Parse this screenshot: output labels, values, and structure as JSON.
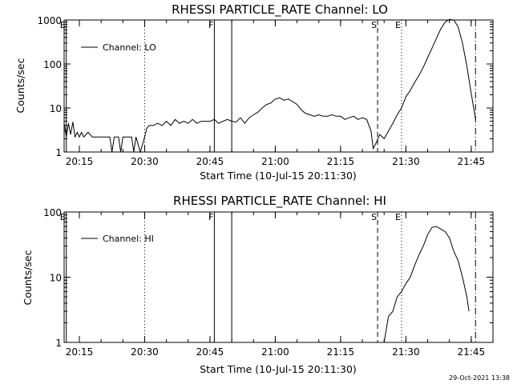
{
  "footer_date": "29-Oct-2021 13:38",
  "chart_data": [
    {
      "type": "line",
      "title": "RHESSI PARTICLE_RATE Channel: LO",
      "xlabel": "Start Time (10-Jul-15 20:11:30)",
      "ylabel": "Counts/sec",
      "y_scale": "log",
      "ylim": [
        1,
        1000
      ],
      "xlim": [
        "20:11:30",
        "21:50:00"
      ],
      "x_ticks": [
        "20:15",
        "20:30",
        "20:45",
        "21:00",
        "21:15",
        "21:30",
        "21:45"
      ],
      "y_ticks": [
        "1",
        "10",
        "100",
        "1000"
      ],
      "legend": "Channel: LO",
      "legend_position": "top-left",
      "markers": [
        {
          "label": "E",
          "time": "20:12:00",
          "style": "solid"
        },
        {
          "label": "",
          "time": "20:30:00",
          "style": "dotted"
        },
        {
          "label": "F",
          "time": "20:46:00",
          "style": "solid"
        },
        {
          "label": "",
          "time": "20:50:00",
          "style": "solid"
        },
        {
          "label": "S",
          "time": "21:23:30",
          "style": "dashed"
        },
        {
          "label": "E",
          "time": "21:29:00",
          "style": "dotted"
        },
        {
          "label": "",
          "time": "21:46:00",
          "style": "dashdot"
        }
      ],
      "series": [
        {
          "name": "Channel: LO",
          "points": [
            [
              "20:11:30",
              4.5
            ],
            [
              "20:12:00",
              2.2
            ],
            [
              "20:12:30",
              4.5
            ],
            [
              "20:13:00",
              2.5
            ],
            [
              "20:13:30",
              4.8
            ],
            [
              "20:14:00",
              2.2
            ],
            [
              "20:14:30",
              2.8
            ],
            [
              "20:15:00",
              2.2
            ],
            [
              "20:15:30",
              2.8
            ],
            [
              "20:16:00",
              2.2
            ],
            [
              "20:17:00",
              2.8
            ],
            [
              "20:18:00",
              2.2
            ],
            [
              "20:19:00",
              2.2
            ],
            [
              "20:20:00",
              2.2
            ],
            [
              "20:21:00",
              2.2
            ],
            [
              "20:22:00",
              2.2
            ],
            [
              "20:22:30",
              1
            ],
            [
              "20:23:00",
              2.2
            ],
            [
              "20:24:00",
              2.2
            ],
            [
              "20:24:30",
              1
            ],
            [
              "20:25:00",
              2.2
            ],
            [
              "20:26:00",
              2.2
            ],
            [
              "20:27:00",
              2.2
            ],
            [
              "20:27:30",
              1
            ],
            [
              "20:28:00",
              2.2
            ],
            [
              "20:29:00",
              1
            ],
            [
              "20:30:00",
              2.2
            ],
            [
              "20:30:30",
              3.5
            ],
            [
              "20:31:00",
              4
            ],
            [
              "20:32:00",
              4
            ],
            [
              "20:33:00",
              4.5
            ],
            [
              "20:34:00",
              4
            ],
            [
              "20:35:00",
              5
            ],
            [
              "20:36:00",
              4
            ],
            [
              "20:37:00",
              5.5
            ],
            [
              "20:38:00",
              4.5
            ],
            [
              "20:39:00",
              5
            ],
            [
              "20:40:00",
              4.5
            ],
            [
              "20:41:00",
              5.5
            ],
            [
              "20:42:00",
              4.5
            ],
            [
              "20:43:00",
              5
            ],
            [
              "20:44:00",
              5
            ],
            [
              "20:45:00",
              5
            ],
            [
              "20:46:00",
              5.5
            ],
            [
              "20:47:00",
              4.5
            ],
            [
              "20:48:00",
              5
            ],
            [
              "20:49:00",
              5.5
            ],
            [
              "20:50:00",
              5
            ],
            [
              "20:51:00",
              4.8
            ],
            [
              "20:52:00",
              6
            ],
            [
              "20:53:00",
              4.5
            ],
            [
              "20:54:00",
              6
            ],
            [
              "20:55:00",
              7
            ],
            [
              "20:56:00",
              8
            ],
            [
              "20:57:00",
              10
            ],
            [
              "20:58:00",
              12
            ],
            [
              "20:59:00",
              13
            ],
            [
              "21:00:00",
              16
            ],
            [
              "21:01:00",
              17
            ],
            [
              "21:02:00",
              15
            ],
            [
              "21:03:00",
              16
            ],
            [
              "21:04:00",
              14
            ],
            [
              "21:05:00",
              12
            ],
            [
              "21:06:00",
              9
            ],
            [
              "21:07:00",
              7.5
            ],
            [
              "21:08:00",
              7
            ],
            [
              "21:09:00",
              6.5
            ],
            [
              "21:10:00",
              7
            ],
            [
              "21:11:00",
              6.5
            ],
            [
              "21:12:00",
              6.5
            ],
            [
              "21:13:00",
              7
            ],
            [
              "21:14:00",
              6.5
            ],
            [
              "21:15:00",
              6.5
            ],
            [
              "21:16:00",
              5.5
            ],
            [
              "21:17:00",
              6
            ],
            [
              "21:18:00",
              6.5
            ],
            [
              "21:19:00",
              5.5
            ],
            [
              "21:20:00",
              6
            ],
            [
              "21:21:00",
              5.5
            ],
            [
              "21:22:00",
              3
            ],
            [
              "21:22:30",
              1.2
            ],
            [
              "21:23:00",
              1.5
            ],
            [
              "21:24:00",
              2.5
            ],
            [
              "21:25:00",
              2
            ],
            [
              "21:26:00",
              3
            ],
            [
              "21:27:00",
              4.5
            ],
            [
              "21:28:00",
              7
            ],
            [
              "21:29:00",
              10
            ],
            [
              "21:30:00",
              18
            ],
            [
              "21:31:00",
              25
            ],
            [
              "21:32:00",
              38
            ],
            [
              "21:33:00",
              55
            ],
            [
              "21:34:00",
              85
            ],
            [
              "21:35:00",
              140
            ],
            [
              "21:36:00",
              230
            ],
            [
              "21:37:00",
              380
            ],
            [
              "21:38:00",
              620
            ],
            [
              "21:39:00",
              900
            ],
            [
              "21:40:00",
              1030
            ],
            [
              "21:41:00",
              1000
            ],
            [
              "21:42:00",
              700
            ],
            [
              "21:43:00",
              300
            ],
            [
              "21:44:00",
              90
            ],
            [
              "21:45:00",
              22
            ],
            [
              "21:46:00",
              5.5
            ]
          ]
        }
      ]
    },
    {
      "type": "line",
      "title": "RHESSI PARTICLE_RATE Channel: HI",
      "xlabel": "Start Time (10-Jul-15 20:11:30)",
      "ylabel": "Counts/sec",
      "y_scale": "log",
      "ylim": [
        1,
        100
      ],
      "xlim": [
        "20:11:30",
        "21:50:00"
      ],
      "x_ticks": [
        "20:15",
        "20:30",
        "20:45",
        "21:00",
        "21:15",
        "21:30",
        "21:45"
      ],
      "y_ticks": [
        "1",
        "10",
        "100"
      ],
      "legend": "Channel: HI",
      "legend_position": "top-left",
      "markers": [
        {
          "label": "E",
          "time": "20:12:00",
          "style": "solid"
        },
        {
          "label": "",
          "time": "20:30:00",
          "style": "dotted"
        },
        {
          "label": "F",
          "time": "20:46:00",
          "style": "solid"
        },
        {
          "label": "",
          "time": "20:50:00",
          "style": "solid"
        },
        {
          "label": "S",
          "time": "21:23:30",
          "style": "dashed"
        },
        {
          "label": "E",
          "time": "21:29:00",
          "style": "dotted"
        },
        {
          "label": "",
          "time": "21:46:00",
          "style": "dashdot"
        }
      ],
      "series": [
        {
          "name": "Channel: HI",
          "points": [
            [
              "21:25:00",
              1
            ],
            [
              "21:26:00",
              2.5
            ],
            [
              "21:27:00",
              3
            ],
            [
              "21:28:00",
              5
            ],
            [
              "21:29:00",
              6
            ],
            [
              "21:30:00",
              8
            ],
            [
              "21:31:00",
              10
            ],
            [
              "21:32:00",
              15
            ],
            [
              "21:33:00",
              22
            ],
            [
              "21:34:00",
              30
            ],
            [
              "21:35:00",
              45
            ],
            [
              "21:36:00",
              58
            ],
            [
              "21:37:00",
              60
            ],
            [
              "21:38:00",
              55
            ],
            [
              "21:39:00",
              50
            ],
            [
              "21:40:00",
              40
            ],
            [
              "21:41:00",
              25
            ],
            [
              "21:42:00",
              18
            ],
            [
              "21:43:00",
              10
            ],
            [
              "21:44:00",
              5
            ],
            [
              "21:44:30",
              3
            ]
          ]
        }
      ]
    }
  ]
}
